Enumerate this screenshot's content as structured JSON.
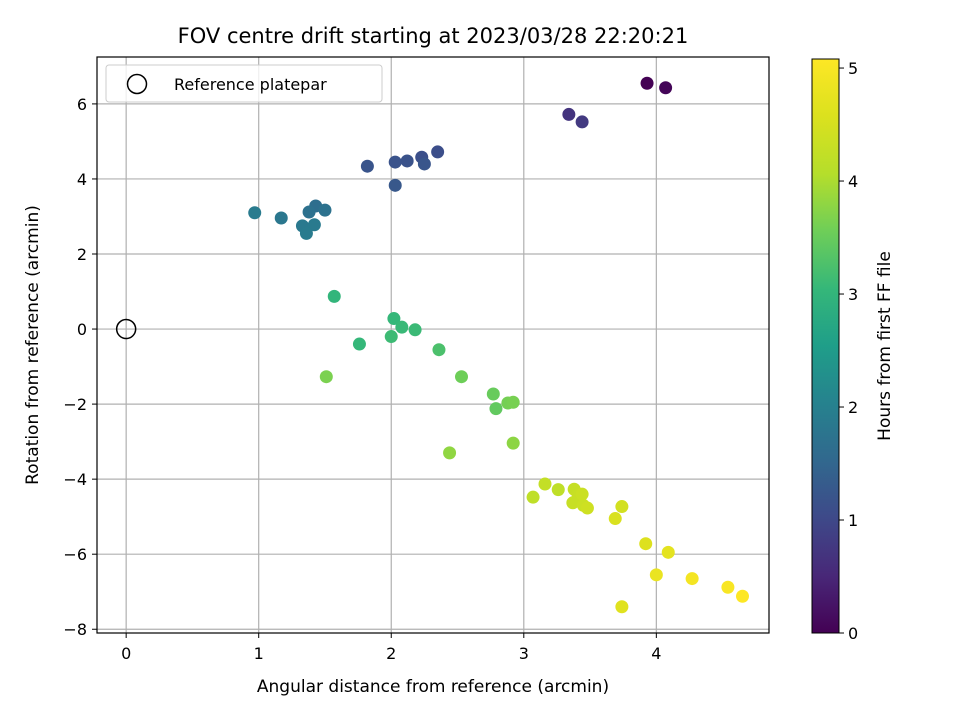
{
  "chart_data": {
    "type": "scatter",
    "title": "FOV centre drift starting at 2023/03/28 22:20:21",
    "xlabel": "Angular distance from reference (arcmin)",
    "ylabel": "Rotation from reference (arcmin)",
    "xlim": [
      -0.22,
      4.85
    ],
    "ylim": [
      -8.1,
      7.25
    ],
    "xticks": [
      0,
      1,
      2,
      3,
      4
    ],
    "yticks": [
      -8,
      -6,
      -4,
      -2,
      0,
      2,
      4,
      6
    ],
    "grid": true,
    "legend": {
      "position": "top-left",
      "entries": [
        {
          "label": "Reference platepar",
          "marker": "open-circle",
          "x": 0,
          "y": 0
        }
      ]
    },
    "colorbar": {
      "label": "Hours from first FF file",
      "colormap": "viridis",
      "range": [
        0,
        5.08
      ],
      "ticks": [
        0,
        1,
        2,
        3,
        4,
        5
      ]
    },
    "series": [
      {
        "columns": [
          "x",
          "y",
          "hours"
        ],
        "points": [
          [
            3.93,
            6.55,
            0.0
          ],
          [
            4.07,
            6.43,
            0.05
          ],
          [
            3.34,
            5.72,
            0.7
          ],
          [
            3.44,
            5.52,
            0.78
          ],
          [
            2.35,
            4.72,
            1.1
          ],
          [
            2.23,
            4.58,
            1.12
          ],
          [
            2.12,
            4.48,
            1.16
          ],
          [
            2.03,
            4.45,
            1.18
          ],
          [
            1.82,
            4.34,
            1.2
          ],
          [
            2.25,
            4.4,
            1.22
          ],
          [
            2.03,
            3.83,
            1.26
          ],
          [
            1.43,
            3.28,
            1.65
          ],
          [
            1.38,
            3.12,
            1.7
          ],
          [
            1.5,
            3.17,
            1.72
          ],
          [
            1.17,
            2.96,
            1.82
          ],
          [
            0.97,
            3.1,
            1.9
          ],
          [
            1.33,
            2.75,
            1.85
          ],
          [
            1.42,
            2.78,
            1.88
          ],
          [
            1.36,
            2.55,
            1.9
          ],
          [
            1.57,
            0.87,
            3.0
          ],
          [
            2.02,
            0.28,
            3.05
          ],
          [
            2.08,
            0.05,
            3.08
          ],
          [
            2.18,
            -0.02,
            3.1
          ],
          [
            1.76,
            -0.4,
            3.05
          ],
          [
            2.0,
            -0.2,
            3.12
          ],
          [
            2.36,
            -0.55,
            3.25
          ],
          [
            1.51,
            -1.27,
            3.65
          ],
          [
            2.53,
            -1.27,
            3.55
          ],
          [
            2.77,
            -1.73,
            3.5
          ],
          [
            2.79,
            -2.12,
            3.45
          ],
          [
            2.88,
            -1.97,
            3.6
          ],
          [
            2.92,
            -1.95,
            3.62
          ],
          [
            2.44,
            -3.3,
            3.8
          ],
          [
            2.92,
            -3.04,
            3.78
          ],
          [
            3.07,
            -4.48,
            4.2
          ],
          [
            3.16,
            -4.13,
            4.25
          ],
          [
            3.26,
            -4.28,
            4.2
          ],
          [
            3.38,
            -4.27,
            4.28
          ],
          [
            3.41,
            -4.43,
            4.3
          ],
          [
            3.37,
            -4.63,
            4.3
          ],
          [
            3.44,
            -4.4,
            4.35
          ],
          [
            3.45,
            -4.7,
            4.35
          ],
          [
            3.48,
            -4.77,
            4.4
          ],
          [
            3.74,
            -4.73,
            4.45
          ],
          [
            3.69,
            -5.05,
            4.55
          ],
          [
            3.92,
            -5.72,
            4.6
          ],
          [
            4.09,
            -5.95,
            4.7
          ],
          [
            3.74,
            -7.4,
            4.65
          ],
          [
            4.0,
            -6.55,
            4.8
          ],
          [
            4.27,
            -6.65,
            4.95
          ],
          [
            4.54,
            -6.88,
            5.0
          ],
          [
            4.65,
            -7.12,
            5.08
          ]
        ]
      }
    ]
  }
}
